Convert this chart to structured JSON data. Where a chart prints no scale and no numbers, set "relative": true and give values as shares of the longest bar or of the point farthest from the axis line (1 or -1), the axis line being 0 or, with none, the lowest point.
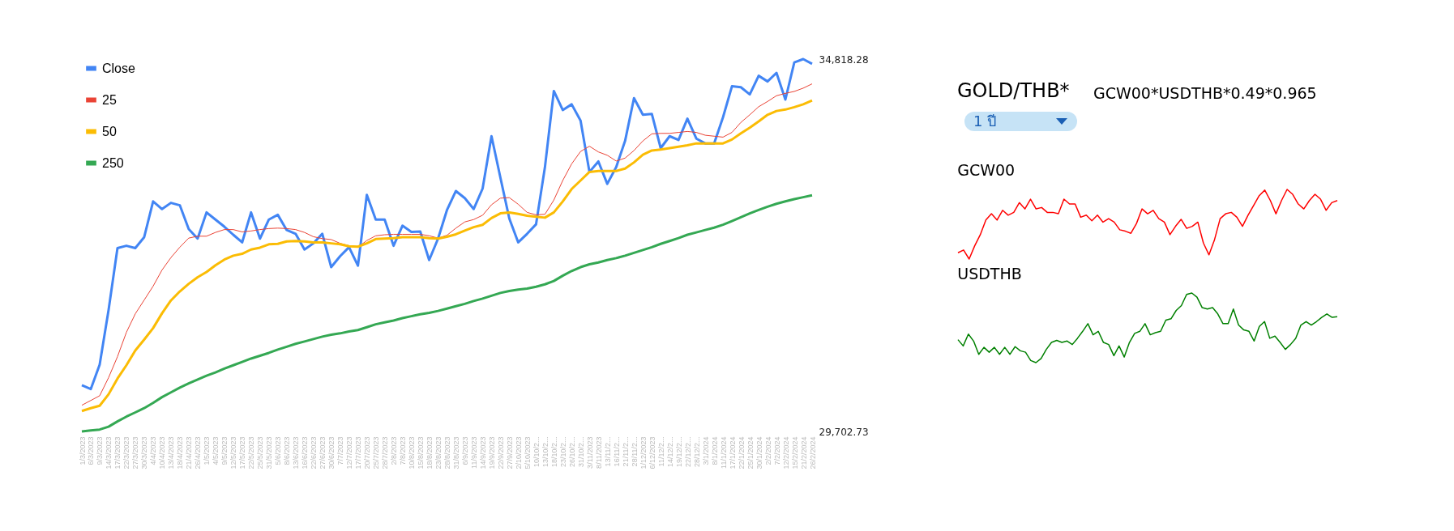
{
  "chart_data": [
    {
      "type": "line",
      "categories": [
        "1/3/2023",
        "6/3/2023",
        "9/3/2023",
        "14/3/2023",
        "17/3/2023",
        "22/3/2023",
        "27/3/2023",
        "30/3/2023",
        "4/4/2023",
        "10/4/2023",
        "13/4/2023",
        "18/4/2023",
        "21/4/2023",
        "26/4/2023",
        "1/5/2023",
        "4/5/2023",
        "9/5/2023",
        "12/5/2023",
        "17/5/2023",
        "22/5/2023",
        "25/5/2023",
        "31/5/2023",
        "5/6/2023",
        "8/6/2023",
        "13/6/2023",
        "16/6/2023",
        "22/6/2023",
        "27/6/2023",
        "30/6/2023",
        "7/7/2023",
        "12/7/2023",
        "17/7/2023",
        "20/7/2023",
        "25/7/2023",
        "28/7/2023",
        "2/8/2023",
        "7/8/2023",
        "10/8/2023",
        "15/8/2023",
        "18/8/2023",
        "23/8/2023",
        "28/8/2023",
        "31/8/2023",
        "6/9/2023",
        "11/9/2023",
        "14/9/2023",
        "19/9/2023",
        "22/9/2023",
        "27/9/2023",
        "2/10/2023",
        "5/10/2023",
        "10/10/2...",
        "13/10/2...",
        "18/10/2...",
        "23/10/2...",
        "26/10/2...",
        "31/10/2...",
        "3/11/2023",
        "8/11/2023",
        "13/11/2...",
        "16/11/2...",
        "21/11/2...",
        "28/11/2...",
        "1/12/2023",
        "6/12/2023",
        "11/12/2...",
        "14/12/2...",
        "19/12/2...",
        "22/12/2...",
        "28/12/2...",
        "3/1/2024",
        "8/1/2024",
        "11/1/2024",
        "17/1/2024",
        "22/1/2024",
        "25/1/2024",
        "30/1/2024",
        "2/2/2024",
        "7/2/2024",
        "12/2/2024",
        "15/2/2024",
        "21/2/2024",
        "26/2/2024"
      ],
      "series": [
        {
          "name": "Close",
          "color": "#4285f4",
          "values": [
            30337,
            30285,
            30619,
            31371,
            32221,
            32254,
            32221,
            32372,
            32863,
            32758,
            32843,
            32810,
            32483,
            32352,
            32712,
            32614,
            32516,
            32405,
            32300,
            32712,
            32352,
            32614,
            32679,
            32470,
            32418,
            32202,
            32287,
            32418,
            31960,
            32110,
            32234,
            31980,
            32954,
            32614,
            32614,
            32254,
            32529,
            32444,
            32450,
            32058,
            32352,
            32745,
            33006,
            32908,
            32758,
            33039,
            33759,
            33189,
            32627,
            32300,
            32418,
            32548,
            33333,
            34380,
            34118,
            34197,
            33974,
            33268,
            33412,
            33104,
            33333,
            33694,
            34282,
            34053,
            34066,
            33595,
            33759,
            33707,
            34000,
            33726,
            33660,
            33660,
            34020,
            34445,
            34432,
            34334,
            34589,
            34511,
            34629,
            34262,
            34773,
            34818.28,
            34753
          ]
        },
        {
          "name": "25",
          "color": "#ea4335",
          "values": [
            30063,
            30128,
            30193,
            30442,
            30730,
            31064,
            31319,
            31508,
            31698,
            31920,
            32091,
            32234,
            32359,
            32385,
            32385,
            32437,
            32476,
            32476,
            32444,
            32457,
            32476,
            32490,
            32496,
            32490,
            32476,
            32437,
            32378,
            32352,
            32339,
            32287,
            32254,
            32234,
            32326,
            32391,
            32405,
            32411,
            32411,
            32411,
            32411,
            32391,
            32359,
            32398,
            32496,
            32581,
            32614,
            32673,
            32817,
            32908,
            32915,
            32824,
            32712,
            32679,
            32686,
            32882,
            33150,
            33379,
            33549,
            33621,
            33543,
            33497,
            33418,
            33458,
            33562,
            33694,
            33791,
            33798,
            33798,
            33811,
            33824,
            33811,
            33772,
            33759,
            33746,
            33811,
            33948,
            34053,
            34164,
            34236,
            34315,
            34347,
            34374,
            34419,
            34478
          ]
        },
        {
          "name": "50",
          "color": "#fbbc04",
          "values": [
            29984,
            30023,
            30056,
            30213,
            30429,
            30612,
            30815,
            30965,
            31122,
            31325,
            31502,
            31626,
            31731,
            31822,
            31894,
            31986,
            32064,
            32117,
            32143,
            32202,
            32228,
            32274,
            32280,
            32313,
            32319,
            32313,
            32300,
            32300,
            32287,
            32274,
            32247,
            32241,
            32287,
            32346,
            32352,
            32359,
            32372,
            32372,
            32372,
            32359,
            32352,
            32378,
            32411,
            32463,
            32509,
            32542,
            32634,
            32699,
            32712,
            32692,
            32666,
            32653,
            32640,
            32712,
            32863,
            33033,
            33150,
            33268,
            33281,
            33281,
            33281,
            33314,
            33399,
            33504,
            33562,
            33576,
            33595,
            33615,
            33634,
            33660,
            33660,
            33660,
            33660,
            33713,
            33798,
            33876,
            33962,
            34053,
            34105,
            34125,
            34158,
            34197,
            34249
          ]
        },
        {
          "name": "250",
          "color": "#34a853",
          "values": [
            29702.73,
            29716,
            29729,
            29768,
            29840,
            29906,
            29964,
            30023,
            30095,
            30174,
            30239,
            30305,
            30363,
            30416,
            30468,
            30514,
            30566,
            30612,
            30658,
            30704,
            30743,
            30782,
            30828,
            30867,
            30906,
            30939,
            30972,
            31005,
            31031,
            31050,
            31077,
            31096,
            31135,
            31175,
            31201,
            31227,
            31260,
            31286,
            31312,
            31332,
            31358,
            31391,
            31423,
            31456,
            31495,
            31528,
            31567,
            31606,
            31633,
            31652,
            31665,
            31691,
            31724,
            31770,
            31842,
            31907,
            31960,
            31999,
            32025,
            32058,
            32084,
            32117,
            32157,
            32195,
            32234,
            32280,
            32319,
            32359,
            32405,
            32437,
            32470,
            32502,
            32542,
            32594,
            32646,
            32699,
            32745,
            32790,
            32830,
            32863,
            32895,
            32921,
            32947
          ]
        }
      ],
      "ylim": [
        29702.73,
        34818.28
      ],
      "yticks": [
        {
          "value": 29702.73,
          "label": "29,702.73"
        },
        {
          "value": 34818.28,
          "label": "34,818.28"
        }
      ],
      "legend": "top left"
    },
    {
      "type": "other",
      "title": "GOLD/THB*",
      "subtitle": "GCW00*USDTHB*0.49*0.965",
      "annotations": [
        "1 ปี"
      ]
    },
    {
      "type": "line",
      "title": "GCW00",
      "relative": true,
      "categories": [
        null,
        null,
        null,
        null,
        null,
        null,
        null,
        null,
        null,
        null,
        null,
        null,
        null,
        null,
        null,
        null,
        null,
        null,
        null,
        null,
        null,
        null,
        null,
        null,
        null,
        null,
        null,
        null,
        null,
        null,
        null,
        null,
        null,
        null,
        null,
        null,
        null,
        null,
        null,
        null,
        null,
        null,
        null,
        null,
        null,
        null,
        null,
        null,
        null,
        null,
        null,
        null,
        null,
        null,
        null,
        null,
        null,
        null,
        null,
        null,
        null,
        null,
        null,
        null,
        null,
        null,
        null,
        null,
        null
      ],
      "series": [
        {
          "color": "#ff0000",
          "values": [
            0.09,
            0.13,
            0,
            0.19,
            0.35,
            0.56,
            0.65,
            0.56,
            0.7,
            0.63,
            0.67,
            0.81,
            0.72,
            0.86,
            0.72,
            0.74,
            0.67,
            0.67,
            0.65,
            0.86,
            0.79,
            0.79,
            0.6,
            0.63,
            0.55,
            0.63,
            0.53,
            0.58,
            0.53,
            0.42,
            0.4,
            0.37,
            0.51,
            0.72,
            0.65,
            0.7,
            0.58,
            0.53,
            0.35,
            0.47,
            0.57,
            0.44,
            0.47,
            0.53,
            0.23,
            0.06,
            0.28,
            0.58,
            0.65,
            0.67,
            0.6,
            0.47,
            0.63,
            0.77,
            0.91,
            0.99,
            0.84,
            0.65,
            0.84,
            1,
            0.93,
            0.79,
            0.72,
            0.84,
            0.93,
            0.86,
            0.7,
            0.81,
            0.84
          ]
        }
      ]
    },
    {
      "type": "line",
      "title": "USDTHB",
      "relative": true,
      "categories": [
        null,
        null,
        null,
        null,
        null,
        null,
        null,
        null,
        null,
        null,
        null,
        null,
        null,
        null,
        null,
        null,
        null,
        null,
        null,
        null,
        null,
        null,
        null,
        null,
        null,
        null,
        null,
        null,
        null,
        null,
        null,
        null,
        null,
        null,
        null,
        null,
        null,
        null,
        null,
        null,
        null,
        null,
        null,
        null,
        null,
        null,
        null,
        null,
        null,
        null,
        null,
        null,
        null,
        null,
        null,
        null,
        null,
        null,
        null,
        null,
        null,
        null,
        null,
        null,
        null,
        null,
        null,
        null,
        null,
        null,
        null,
        null,
        null,
        null
      ],
      "series": [
        {
          "color": "#008000",
          "values": [
            0.33,
            0.24,
            0.41,
            0.31,
            0.12,
            0.22,
            0.15,
            0.22,
            0.12,
            0.22,
            0.12,
            0.23,
            0.17,
            0.15,
            0.03,
            0,
            0.06,
            0.19,
            0.29,
            0.32,
            0.29,
            0.31,
            0.26,
            0.35,
            0.45,
            0.56,
            0.4,
            0.45,
            0.29,
            0.26,
            0.1,
            0.24,
            0.08,
            0.29,
            0.42,
            0.45,
            0.56,
            0.4,
            0.43,
            0.45,
            0.61,
            0.63,
            0.75,
            0.82,
            0.98,
            1,
            0.94,
            0.79,
            0.77,
            0.79,
            0.7,
            0.56,
            0.56,
            0.77,
            0.54,
            0.47,
            0.45,
            0.31,
            0.52,
            0.59,
            0.35,
            0.38,
            0.29,
            0.19,
            0.26,
            0.35,
            0.54,
            0.59,
            0.54,
            0.59,
            0.65,
            0.7,
            0.65,
            0.66
          ]
        }
      ]
    }
  ]
}
